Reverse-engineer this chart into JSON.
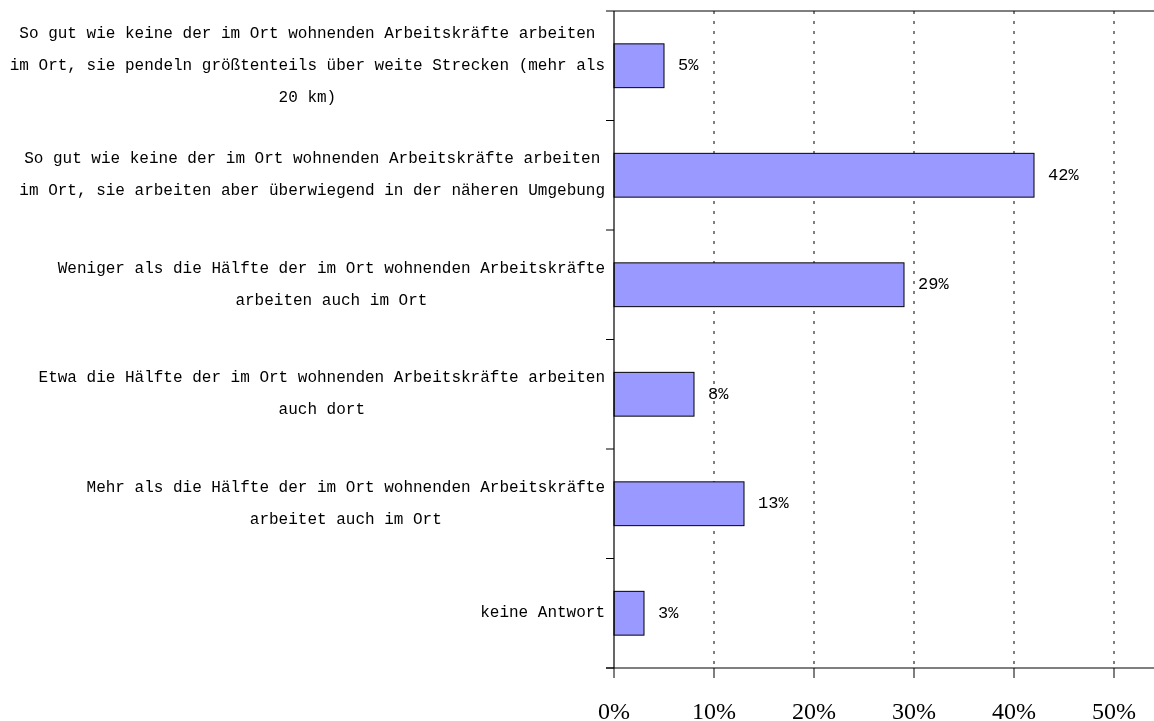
{
  "chart_data": {
    "type": "bar",
    "orientation": "horizontal",
    "categories": [
      "So gut wie keine der im Ort wohnenden Arbeitskräfte arbeiten im Ort, sie pendeln größtenteils über weite Strecken (mehr als 20 km)",
      "So gut wie keine der im Ort wohnenden Arbeitskräfte arbeiten im Ort, sie arbeiten aber überwiegend in der näheren Umgebung",
      "Weniger als die Hälfte der im Ort wohnenden Arbeitskräfte arbeiten auch im Ort",
      "Etwa die Hälfte der im Ort wohnenden Arbeitskräfte arbeiten auch dort",
      "Mehr als die Hälfte der im Ort wohnenden Arbeitskräfte arbeitet auch im Ort",
      "keine Antwort"
    ],
    "values": [
      5,
      42,
      29,
      8,
      13,
      3
    ],
    "color": "#9999ff",
    "value_labels": [
      "5%",
      "42%",
      "29%",
      "8%",
      "13%",
      "3%"
    ],
    "xlim": [
      0,
      54
    ],
    "xticks": [
      {
        "value": 0,
        "label": "0%"
      },
      {
        "value": 10,
        "label": "10%"
      },
      {
        "value": 20,
        "label": "20%"
      },
      {
        "value": 30,
        "label": "30%"
      },
      {
        "value": 40,
        "label": "40%"
      },
      {
        "value": 50,
        "label": "50%"
      }
    ],
    "grid": "x"
  }
}
